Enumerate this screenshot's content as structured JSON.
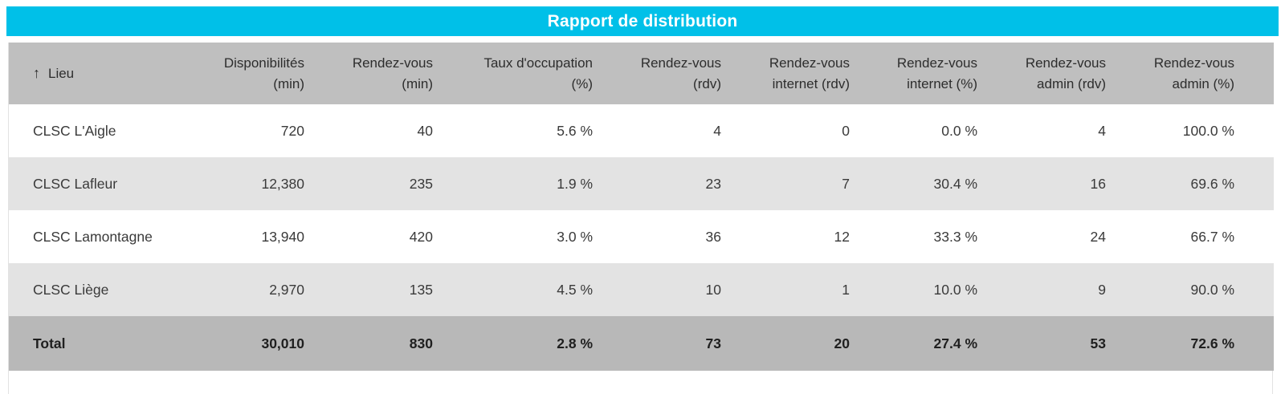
{
  "title": "Rapport de distribution",
  "colors": {
    "accent_cyan": "#00C0E8",
    "header_gray": "#BFBFBF",
    "total_row_gray": "#B8B8B8",
    "alt_row_gray": "#E3E3E3",
    "title_text": "#FFFFFF",
    "body_text": "#3A3A3A"
  },
  "table": {
    "sort": {
      "icon": "↑",
      "column": "Lieu",
      "direction": "ascending"
    },
    "columns": [
      {
        "id": "lieu",
        "line1": "Lieu",
        "line2": ""
      },
      {
        "id": "disponibilites-min",
        "line1": "Disponibilités",
        "line2": "(min)"
      },
      {
        "id": "rendez-vous-min",
        "line1": "Rendez-vous",
        "line2": "(min)"
      },
      {
        "id": "taux-occupation-pct",
        "line1": "Taux d'occupation",
        "line2": "(%)"
      },
      {
        "id": "rendez-vous-rdv",
        "line1": "Rendez-vous",
        "line2": "(rdv)"
      },
      {
        "id": "rendez-vous-internet-rdv",
        "line1": "Rendez-vous",
        "line2": "internet (rdv)"
      },
      {
        "id": "rendez-vous-internet-pct",
        "line1": "Rendez-vous",
        "line2": "internet (%)"
      },
      {
        "id": "rendez-vous-admin-rdv",
        "line1": "Rendez-vous",
        "line2": "admin (rdv)"
      },
      {
        "id": "rendez-vous-admin-pct",
        "line1": "Rendez-vous",
        "line2": "admin (%)"
      }
    ],
    "rows": [
      {
        "lieu": "CLSC L'Aigle",
        "values": [
          "720",
          "40",
          "5.6 %",
          "4",
          "0",
          "0.0 %",
          "4",
          "100.0 %"
        ]
      },
      {
        "lieu": "CLSC Lafleur",
        "values": [
          "12,380",
          "235",
          "1.9 %",
          "23",
          "7",
          "30.4 %",
          "16",
          "69.6 %"
        ]
      },
      {
        "lieu": "CLSC Lamontagne",
        "values": [
          "13,940",
          "420",
          "3.0 %",
          "36",
          "12",
          "33.3 %",
          "24",
          "66.7 %"
        ]
      },
      {
        "lieu": "CLSC Liège",
        "values": [
          "2,970",
          "135",
          "4.5 %",
          "10",
          "1",
          "10.0 %",
          "9",
          "90.0 %"
        ]
      }
    ],
    "total": {
      "lieu": "Total",
      "values": [
        "30,010",
        "830",
        "2.8 %",
        "73",
        "20",
        "27.4 %",
        "53",
        "72.6 %"
      ]
    }
  }
}
